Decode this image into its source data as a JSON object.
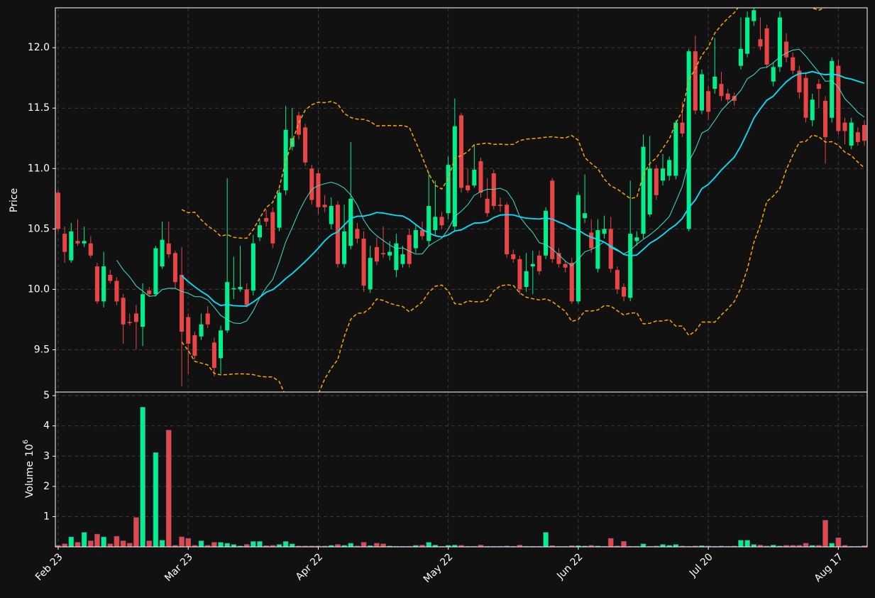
{
  "chart_data": {
    "type": "candlestick",
    "categories": [
      "Feb 23",
      null,
      null,
      null,
      null,
      null,
      null,
      null,
      null,
      null,
      null,
      null,
      null,
      null,
      null,
      null,
      null,
      null,
      null,
      null,
      "Mar 23",
      null,
      null,
      null,
      null,
      null,
      null,
      null,
      null,
      null,
      null,
      null,
      null,
      null,
      null,
      null,
      null,
      null,
      null,
      null,
      "Apr 22",
      null,
      null,
      null,
      null,
      null,
      null,
      null,
      null,
      null,
      null,
      null,
      null,
      null,
      null,
      null,
      null,
      null,
      null,
      null,
      "May 22",
      null,
      null,
      null,
      null,
      null,
      null,
      null,
      null,
      null,
      null,
      null,
      null,
      null,
      null,
      null,
      null,
      null,
      null,
      null,
      "Jun 22",
      null,
      null,
      null,
      null,
      null,
      null,
      null,
      null,
      null,
      null,
      null,
      null,
      null,
      null,
      null,
      null,
      null,
      null,
      null,
      "Jul 20",
      null,
      null,
      null,
      null,
      null,
      null,
      null,
      null,
      null,
      null,
      null,
      null,
      null,
      null,
      null,
      null,
      null,
      null,
      null,
      "Aug 17",
      null,
      null,
      null,
      null
    ],
    "open": [
      10.8,
      10.46,
      10.24,
      10.4,
      10.38,
      10.38,
      10.19,
      9.9,
      10.12,
      10.07,
      9.93,
      9.73,
      9.8,
      9.69,
      9.99,
      9.96,
      10.19,
      10.38,
      10.3,
      10.12,
      9.77,
      9.62,
      9.61,
      9.8,
      9.56,
      9.43,
      9.66,
      10.0,
      10.0,
      10.0,
      9.99,
      10.43,
      10.59,
      10.64,
      10.51,
      10.82,
      11.18,
      11.44,
      11.34,
      11.0,
      10.96,
      10.7,
      10.54,
      10.7,
      10.21,
      10.36,
      10.5,
      10.42,
      10.0,
      10.35,
      10.3,
      10.28,
      10.16,
      10.21,
      10.45,
      10.34,
      10.49,
      10.4,
      10.49,
      10.6,
      10.63,
      10.52,
      11.44,
      10.86,
      10.86,
      11.06,
      10.75,
      10.96,
      10.7,
      10.7,
      10.29,
      10.25,
      10.02,
      10.19,
      10.28,
      10.28,
      10.9,
      10.3,
      10.21,
      10.22,
      9.9,
      10.59,
      10.47,
      10.17,
      10.46,
      10.5,
      10.16,
      10.02,
      9.93,
      10.4,
      10.46,
      10.62,
      11.0,
      10.9,
      10.94,
      10.94,
      11.38,
      10.5,
      11.97,
      11.48,
      11.64,
      11.66,
      11.7,
      11.62,
      11.6,
      11.85,
      11.95,
      12.22,
      12.07,
      12.16,
      11.72,
      11.84,
      12.05,
      11.92,
      11.81,
      11.75,
      11.4,
      11.7,
      11.56,
      11.42,
      11.85,
      11.38,
      11.19,
      11.3,
      11.36
    ],
    "high": [
      10.82,
      10.52,
      10.55,
      10.58,
      10.52,
      10.44,
      10.22,
      10.31,
      10.16,
      10.1,
      9.96,
      9.8,
      9.87,
      10.05,
      10.02,
      10.36,
      10.56,
      10.56,
      10.32,
      10.35,
      9.8,
      9.65,
      9.8,
      9.86,
      9.6,
      9.7,
      10.92,
      10.27,
      10.36,
      10.05,
      10.45,
      10.58,
      10.66,
      10.68,
      10.83,
      11.52,
      11.5,
      11.47,
      11.37,
      11.03,
      10.99,
      10.78,
      10.76,
      10.73,
      10.7,
      11.22,
      10.55,
      10.48,
      10.36,
      10.43,
      10.52,
      10.4,
      10.46,
      10.36,
      10.5,
      10.54,
      10.56,
      10.97,
      10.9,
      10.64,
      11.1,
      11.58,
      11.46,
      11.0,
      11.2,
      11.09,
      10.92,
      10.99,
      10.76,
      10.72,
      10.33,
      10.28,
      10.3,
      10.32,
      10.32,
      10.68,
      10.92,
      10.34,
      10.24,
      10.26,
      10.81,
      10.95,
      10.58,
      10.58,
      10.61,
      10.6,
      10.19,
      10.05,
      10.9,
      10.48,
      11.28,
      11.27,
      11.03,
      11.12,
      11.1,
      11.4,
      11.55,
      11.99,
      12.1,
      11.82,
      11.68,
      12.08,
      11.8,
      11.66,
      11.63,
      12.25,
      12.3,
      12.33,
      12.25,
      12.19,
      11.88,
      12.3,
      12.12,
      11.96,
      11.85,
      11.8,
      11.62,
      11.74,
      11.6,
      11.92,
      11.9,
      11.42,
      11.42,
      11.34,
      11.4
    ],
    "low": [
      10.48,
      10.22,
      10.22,
      10.36,
      10.35,
      10.26,
      9.88,
      9.85,
      10.05,
      9.87,
      9.55,
      9.7,
      9.5,
      9.53,
      9.94,
      9.94,
      10.17,
      10.26,
      10.0,
      9.2,
      9.3,
      9.42,
      9.58,
      9.68,
      9.28,
      9.3,
      9.64,
      9.92,
      9.98,
      9.85,
      9.95,
      10.4,
      10.52,
      10.34,
      10.48,
      10.78,
      11.15,
      11.24,
      11.02,
      10.7,
      10.62,
      10.64,
      10.5,
      10.18,
      10.18,
      10.33,
      10.38,
      9.98,
      9.97,
      10.2,
      10.26,
      10.24,
      10.1,
      10.18,
      10.18,
      10.3,
      10.41,
      10.36,
      10.45,
      10.5,
      10.58,
      10.48,
      10.8,
      10.8,
      10.84,
      10.76,
      10.6,
      10.66,
      10.64,
      10.26,
      10.22,
      9.96,
      9.98,
      9.96,
      10.12,
      10.25,
      10.22,
      10.18,
      10.14,
      9.88,
      9.88,
      10.55,
      10.3,
      10.14,
      10.42,
      10.14,
      9.96,
      9.9,
      9.9,
      10.36,
      10.42,
      10.6,
      10.74,
      10.86,
      10.9,
      10.91,
      11.26,
      10.48,
      11.45,
      11.45,
      11.4,
      11.62,
      11.56,
      11.54,
      11.52,
      11.82,
      11.92,
      12.18,
      11.98,
      11.83,
      11.68,
      11.8,
      11.88,
      11.78,
      11.58,
      11.38,
      11.35,
      11.5,
      11.04,
      11.38,
      11.28,
      11.2,
      11.16,
      11.19,
      11.19
    ],
    "close": [
      10.5,
      10.31,
      10.48,
      10.38,
      10.4,
      10.28,
      9.9,
      10.19,
      10.07,
      9.9,
      9.71,
      9.72,
      9.73,
      9.96,
      9.96,
      10.34,
      10.41,
      10.29,
      10.06,
      9.65,
      9.55,
      9.45,
      9.71,
      9.71,
      9.35,
      9.66,
      10.06,
      10.01,
      10.02,
      9.87,
      10.38,
      10.53,
      10.56,
      10.38,
      10.8,
      11.32,
      11.25,
      11.28,
      11.05,
      10.74,
      10.68,
      10.68,
      10.69,
      10.21,
      10.48,
      10.75,
      10.42,
      10.03,
      10.26,
      10.23,
      10.29,
      10.31,
      10.38,
      10.29,
      10.21,
      10.49,
      10.44,
      10.69,
      10.6,
      10.53,
      11.03,
      11.35,
      10.84,
      10.82,
      10.99,
      10.8,
      10.63,
      10.69,
      10.69,
      10.29,
      10.25,
      10.0,
      10.15,
      10.21,
      10.15,
      10.65,
      10.25,
      10.21,
      10.18,
      9.9,
      10.78,
      10.63,
      10.34,
      10.49,
      10.5,
      10.17,
      10.0,
      9.94,
      10.46,
      10.43,
      11.18,
      11.0,
      10.78,
      11.0,
      11.07,
      11.38,
      11.29,
      11.97,
      11.48,
      11.78,
      11.47,
      11.76,
      11.6,
      11.57,
      11.56,
      11.99,
      12.25,
      12.31,
      12.01,
      11.86,
      11.84,
      12.25,
      11.92,
      11.81,
      11.63,
      11.42,
      11.57,
      11.66,
      11.26,
      11.89,
      11.31,
      11.31,
      11.38,
      11.22,
      11.23
    ],
    "volume": [
      0.05,
      0.1,
      0.33,
      0.15,
      0.48,
      0.2,
      0.42,
      0.33,
      0.1,
      0.35,
      0.2,
      0.12,
      0.97,
      4.62,
      0.2,
      3.12,
      0.22,
      3.86,
      0.05,
      0.33,
      0.28,
      0.05,
      0.2,
      0.05,
      0.15,
      0.15,
      0.12,
      0.08,
      0.03,
      0.08,
      0.18,
      0.18,
      0.04,
      0.05,
      0.08,
      0.18,
      0.1,
      0.03,
      0.03,
      0.03,
      0.03,
      0.03,
      0.05,
      0.08,
      0.05,
      0.12,
      0.03,
      0.15,
      0.04,
      0.12,
      0.1,
      0.03,
      0.02,
      0.02,
      0.02,
      0.05,
      0.06,
      0.15,
      0.06,
      0.02,
      0.05,
      0.06,
      0.05,
      0.02,
      0.02,
      0.06,
      0.02,
      0.02,
      0.02,
      0.03,
      0.02,
      0.06,
      0.02,
      0.02,
      0.02,
      0.48,
      0.04,
      0.02,
      0.02,
      0.04,
      0.04,
      0.03,
      0.05,
      0.03,
      0.02,
      0.28,
      0.03,
      0.18,
      0.02,
      0.02,
      0.1,
      0.02,
      0.03,
      0.08,
      0.05,
      0.08,
      0.03,
      0.02,
      0.03,
      0.04,
      0.03,
      0.02,
      0.03,
      0.02,
      0.03,
      0.22,
      0.22,
      0.08,
      0.06,
      0.03,
      0.06,
      0.03,
      0.05,
      0.05,
      0.05,
      0.12,
      0.05,
      0.05,
      0.88,
      0.12,
      0.3,
      0.05,
      0.02,
      0.02,
      0.04
    ],
    "ylabel": "Price",
    "ylim": [
      9.15,
      12.33
    ],
    "yticks": [
      9.5,
      {
        "value": 10,
        "label": "10.0"
      },
      10.5,
      {
        "value": 11,
        "label": "11.0"
      },
      11.5,
      {
        "value": 12,
        "label": "12.0"
      }
    ],
    "volume_label": "Volume",
    "volume_scale": {
      "base": "10",
      "exponent": "6"
    },
    "y2lim": [
      0,
      5.12
    ],
    "y2ticks": [
      1,
      2,
      3,
      4,
      5
    ],
    "up_color": "#00f08c",
    "down_color": "#e84646",
    "moving_averages": [
      {
        "window": 10,
        "color": "#40e0d0",
        "width": 1
      },
      {
        "window": 20,
        "color": "#00e5ff",
        "width": 1.8
      }
    ],
    "bollinger": {
      "window": 20,
      "std": 2,
      "color": "#ffa500"
    },
    "grid": true
  }
}
